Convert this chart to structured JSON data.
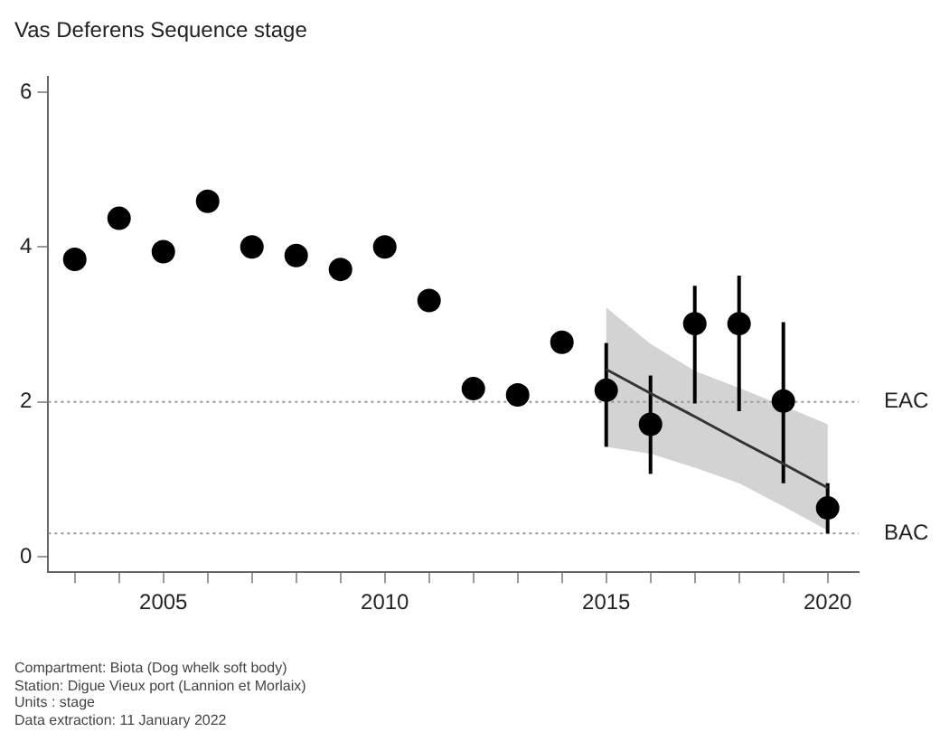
{
  "chart_data": {
    "type": "scatter",
    "title": "Vas Deferens Sequence stage",
    "xlim": [
      2002.4,
      2020.7
    ],
    "xticks": [
      {
        "value": 2003,
        "label": null
      },
      {
        "value": 2004,
        "label": null
      },
      2005,
      {
        "value": 2006,
        "label": null
      },
      {
        "value": 2007,
        "label": null
      },
      {
        "value": 2008,
        "label": null
      },
      {
        "value": 2009,
        "label": null
      },
      2010,
      {
        "value": 2011,
        "label": null
      },
      {
        "value": 2012,
        "label": null
      },
      {
        "value": 2013,
        "label": null
      },
      {
        "value": 2014,
        "label": null
      },
      2015,
      {
        "value": 2016,
        "label": null
      },
      {
        "value": 2017,
        "label": null
      },
      {
        "value": 2018,
        "label": null
      },
      {
        "value": 2019,
        "label": null
      },
      2020
    ],
    "ylim": [
      -0.2,
      6.2
    ],
    "yticks": [
      0,
      2,
      4,
      6
    ],
    "grid": false,
    "legend": false,
    "marker": "circle",
    "series": [
      {
        "color": "#000000",
        "x": [
          2003,
          2004,
          2005,
          2006,
          2007,
          2008,
          2009,
          2010,
          2011,
          2012,
          2013,
          2014,
          2015,
          2016,
          2017,
          2018,
          2019,
          2020
        ],
        "values": [
          3.84,
          4.37,
          3.94,
          4.59,
          4.0,
          3.89,
          3.71,
          4.0,
          3.31,
          2.17,
          2.09,
          2.77,
          2.15,
          1.71,
          3.01,
          3.01,
          2.01,
          0.63
        ],
        "errors": [
          null,
          null,
          null,
          null,
          null,
          null,
          null,
          null,
          null,
          null,
          null,
          null,
          [
            1.42,
            2.76
          ],
          [
            1.07,
            2.34
          ],
          [
            1.98,
            3.5
          ],
          [
            1.88,
            3.63
          ],
          [
            0.95,
            3.03
          ],
          [
            0.3,
            0.95
          ]
        ]
      },
      {
        "type": "line",
        "color": "#333333",
        "x": [
          2015,
          2016,
          2017,
          2018,
          2019,
          2020
        ],
        "values": [
          2.42,
          2.11,
          1.81,
          1.5,
          1.2,
          0.89
        ],
        "lower": [
          1.42,
          1.33,
          1.15,
          0.95,
          0.65,
          0.34
        ],
        "upper": [
          3.22,
          2.75,
          2.4,
          2.18,
          1.95,
          1.71
        ],
        "marker": "none"
      }
    ],
    "ref_lines": [
      {
        "axis": "y",
        "value": 2,
        "label": "EAC",
        "color": "#999999",
        "line_style": "dotted"
      },
      {
        "axis": "y",
        "value": 0.3,
        "label": "BAC",
        "color": "#999999",
        "line_style": "dotted"
      }
    ],
    "annotations": [
      "Compartment: Biota (Dog whelk soft body)",
      "Station: Digue Vieux port (Lannion et Morlaix)",
      "Units :  stage",
      "Data extraction: 11 January 2022"
    ]
  }
}
